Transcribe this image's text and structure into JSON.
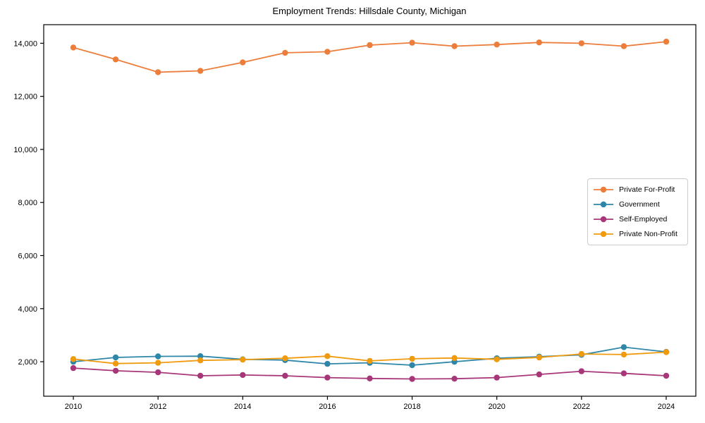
{
  "chart_data": {
    "type": "line",
    "title": "Employment Trends: Hillsdale County, Michigan",
    "xlabel": "",
    "ylabel": "",
    "grid": false,
    "legend_position": "center right",
    "xlim": [
      2009.3,
      2024.7
    ],
    "ylim": [
      700,
      14700
    ],
    "x": [
      2010,
      2011,
      2012,
      2013,
      2014,
      2015,
      2016,
      2017,
      2018,
      2019,
      2020,
      2021,
      2022,
      2023,
      2024
    ],
    "xtick_values": [
      2010,
      2012,
      2014,
      2016,
      2018,
      2020,
      2022,
      2024
    ],
    "xtick_labels": [
      "2010",
      "2012",
      "2014",
      "2016",
      "2018",
      "2020",
      "2022",
      "2024"
    ],
    "ytick_values": [
      2000,
      4000,
      6000,
      8000,
      10000,
      12000,
      14000
    ],
    "ytick_labels": [
      "2,000",
      "4,000",
      "6,000",
      "8,000",
      "10,000",
      "12,000",
      "14,000"
    ],
    "series": [
      {
        "name": "Private For-Profit",
        "color": "#ED7D3A",
        "values": [
          13840,
          13390,
          12910,
          12960,
          13280,
          13640,
          13680,
          13930,
          14020,
          13890,
          13950,
          14030,
          14000,
          13890,
          14060
        ]
      },
      {
        "name": "Government",
        "color": "#2E86A8",
        "values": [
          2000,
          2160,
          2200,
          2210,
          2090,
          2060,
          1920,
          1960,
          1870,
          2000,
          2130,
          2190,
          2260,
          2550,
          2370
        ]
      },
      {
        "name": "Self-Employed",
        "color": "#A83779",
        "values": [
          1760,
          1660,
          1600,
          1470,
          1500,
          1470,
          1400,
          1370,
          1350,
          1360,
          1400,
          1520,
          1640,
          1560,
          1470
        ]
      },
      {
        "name": "Private Non-Profit",
        "color": "#F09A0E",
        "values": [
          2100,
          1930,
          1960,
          2050,
          2080,
          2130,
          2210,
          2030,
          2110,
          2140,
          2090,
          2160,
          2290,
          2270,
          2360
        ]
      }
    ]
  }
}
